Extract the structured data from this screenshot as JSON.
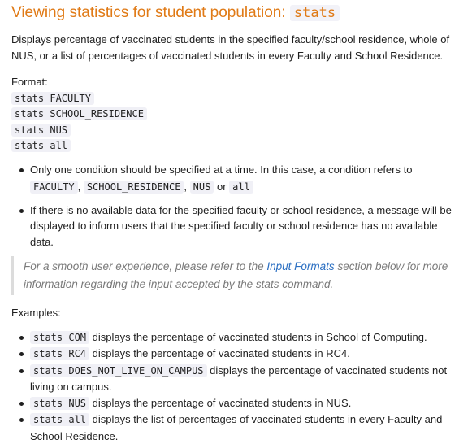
{
  "heading": {
    "text": "Viewing statistics for student population:",
    "command": "stats"
  },
  "intro": "Displays percentage of vaccinated students in the specified faculty/school residence, whole of NUS, or a list of percentages of vaccinated students in every Faculty and School Residence.",
  "format": {
    "label": "Format:",
    "lines": [
      "stats FACULTY",
      "stats SCHOOL_RESIDENCE",
      "stats NUS",
      "stats all"
    ]
  },
  "notes": {
    "condition": {
      "text": "Only one condition should be specified at a time. In this case, a condition refers to",
      "codes": [
        "FACULTY",
        "SCHOOL_RESIDENCE",
        "NUS",
        "all"
      ],
      "sep": ",",
      "or": "or"
    },
    "no_data": "If there is no available data for the specified faculty or school residence, a message will be displayed to inform users that the specified faculty or school residence has no available data."
  },
  "tip": {
    "before": "For a smooth user experience, please refer to the ",
    "link": "Input Formats",
    "after": " section below for more information regarding the input accepted by the stats command."
  },
  "examples": {
    "label": "Examples:",
    "items": [
      {
        "code": "stats COM",
        "text": " displays the percentage of vaccinated students in School of Computing."
      },
      {
        "code": "stats RC4",
        "text": " displays the percentage of vaccinated students in RC4."
      },
      {
        "code": "stats DOES_NOT_LIVE_ON_CAMPUS",
        "text": " displays the percentage of vaccinated students not living on campus."
      },
      {
        "code": "stats NUS",
        "text": " displays the percentage of vaccinated students in NUS."
      },
      {
        "code": "stats all",
        "text": " displays the list of percentages of vaccinated students in every Faculty and School Residence."
      }
    ]
  },
  "colors": {
    "heading": "#e07a16",
    "link": "#2b6fc2",
    "quote_text": "#7a7a7a",
    "code_bg": "#f0f0f6"
  }
}
